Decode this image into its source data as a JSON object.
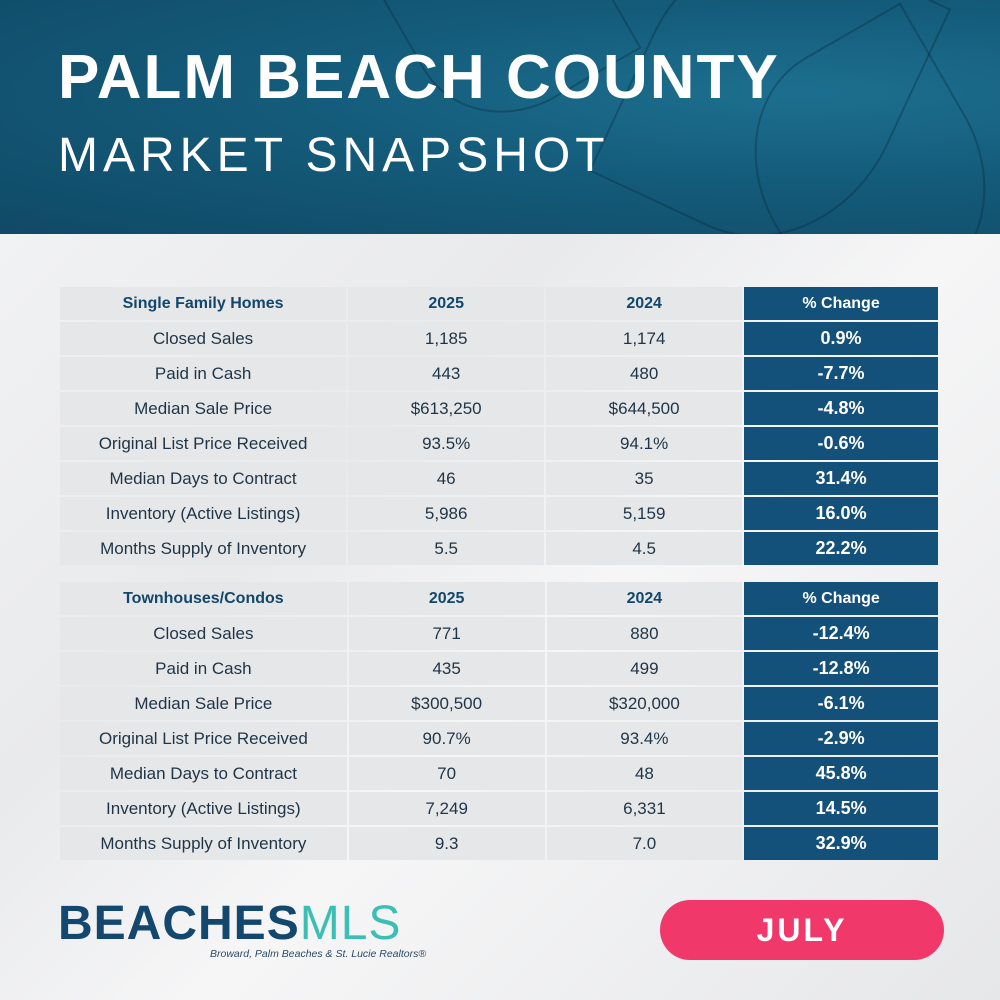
{
  "header": {
    "title": "PALM BEACH COUNTY",
    "subtitle": "MARKET SNAPSHOT"
  },
  "colors": {
    "banner": "#145b7a",
    "change_cell": "#13507a",
    "cell": "#e6e7e8",
    "month_pill": "#f0386b",
    "logo_blue": "#13476e",
    "logo_teal": "#3bbfb5"
  },
  "tables": [
    {
      "headers": [
        "Single Family Homes",
        "2025",
        "2024",
        "% Change"
      ],
      "rows": [
        [
          "Closed Sales",
          "1,185",
          "1,174",
          "0.9%"
        ],
        [
          "Paid in Cash",
          "443",
          "480",
          "-7.7%"
        ],
        [
          "Median Sale Price",
          "$613,250",
          "$644,500",
          "-4.8%"
        ],
        [
          "Original List Price Received",
          "93.5%",
          "94.1%",
          "-0.6%"
        ],
        [
          "Median Days to Contract",
          "46",
          "35",
          "31.4%"
        ],
        [
          "Inventory (Active Listings)",
          "5,986",
          "5,159",
          "16.0%"
        ],
        [
          "Months Supply of Inventory",
          "5.5",
          "4.5",
          "22.2%"
        ]
      ]
    },
    {
      "headers": [
        "Townhouses/Condos",
        "2025",
        "2024",
        "% Change"
      ],
      "rows": [
        [
          "Closed Sales",
          "771",
          "880",
          "-12.4%"
        ],
        [
          "Paid in Cash",
          "435",
          "499",
          "-12.8%"
        ],
        [
          "Median Sale Price",
          "$300,500",
          "$320,000",
          "-6.1%"
        ],
        [
          "Original List Price Received",
          "90.7%",
          "93.4%",
          "-2.9%"
        ],
        [
          "Median Days to Contract",
          "70",
          "48",
          "45.8%"
        ],
        [
          "Inventory (Active Listings)",
          "7,249",
          "6,331",
          "14.5%"
        ],
        [
          "Months Supply of Inventory",
          "9.3",
          "7.0",
          "32.9%"
        ]
      ]
    }
  ],
  "logo": {
    "text_main": "BEACHES",
    "text_accent": "MLS",
    "tagline": "Broward, Palm Beaches & St. Lucie Realtors®"
  },
  "month": "JULY"
}
